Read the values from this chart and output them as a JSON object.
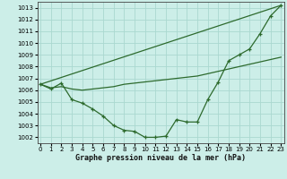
{
  "xlabel": "Graphe pression niveau de la mer (hPa)",
  "background_color": "#cceee8",
  "grid_color": "#aad8d0",
  "line_color": "#2d6a2d",
  "ylim": [
    1001.5,
    1013.5
  ],
  "xlim": [
    -0.3,
    23.3
  ],
  "yticks": [
    1002,
    1003,
    1004,
    1005,
    1006,
    1007,
    1008,
    1009,
    1010,
    1011,
    1012,
    1013
  ],
  "xticks": [
    0,
    1,
    2,
    3,
    4,
    5,
    6,
    7,
    8,
    9,
    10,
    11,
    12,
    13,
    14,
    15,
    16,
    17,
    18,
    19,
    20,
    21,
    22,
    23
  ],
  "series_straight": {
    "x": [
      0,
      23
    ],
    "y": [
      1006.5,
      1013.2
    ]
  },
  "series_mid": {
    "x": [
      0,
      1,
      2,
      3,
      4,
      5,
      6,
      7,
      8,
      9,
      10,
      11,
      12,
      13,
      14,
      15,
      16,
      17,
      18,
      19,
      20,
      21,
      22,
      23
    ],
    "y": [
      1006.5,
      1006.2,
      1006.3,
      1006.1,
      1006.0,
      1006.1,
      1006.2,
      1006.3,
      1006.5,
      1006.6,
      1006.7,
      1006.8,
      1006.9,
      1007.0,
      1007.1,
      1007.2,
      1007.4,
      1007.6,
      1007.8,
      1008.0,
      1008.2,
      1008.4,
      1008.6,
      1008.8
    ]
  },
  "series_main": {
    "x": [
      0,
      1,
      2,
      3,
      4,
      5,
      6,
      7,
      8,
      9,
      10,
      11,
      12,
      13,
      14,
      15,
      16,
      17,
      18,
      19,
      20,
      21,
      22,
      23
    ],
    "y": [
      1006.5,
      1006.1,
      1006.6,
      1005.2,
      1004.9,
      1004.4,
      1003.8,
      1003.0,
      1002.6,
      1002.5,
      1002.0,
      1002.0,
      1002.1,
      1003.5,
      1003.3,
      1003.3,
      1005.2,
      1006.7,
      1008.5,
      1009.0,
      1009.5,
      1010.8,
      1012.3,
      1013.2
    ]
  }
}
